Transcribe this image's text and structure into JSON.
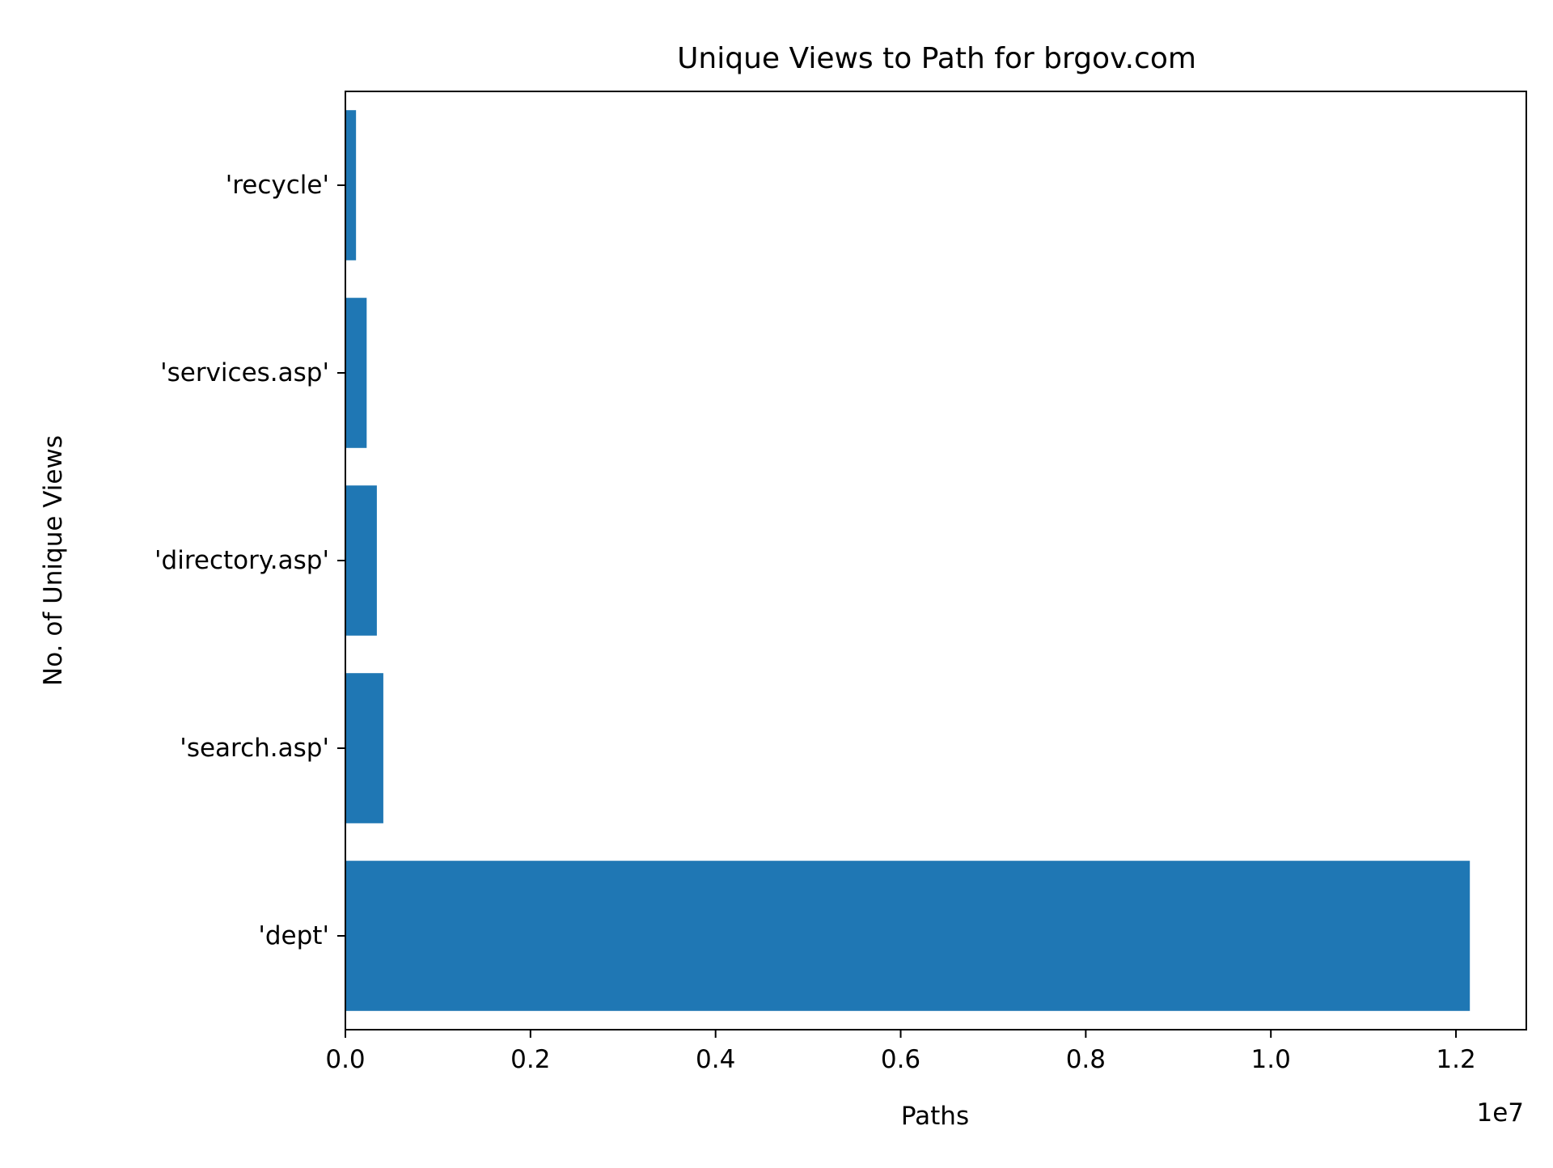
{
  "chart_data": {
    "type": "bar",
    "orientation": "horizontal",
    "title": "Unique Views to Path for brgov.com",
    "xlabel": "Paths",
    "ylabel": "No. of Unique Views",
    "x_offset_label": "1e7",
    "x_scale_multiplier": 10000000,
    "categories": [
      "'dept'",
      "'search.asp'",
      "'directory.asp'",
      "'services.asp'",
      "'recycle'"
    ],
    "values": [
      12150000,
      410000,
      340000,
      230000,
      115000
    ],
    "xlim": [
      0,
      12760000
    ],
    "x_ticks": [
      0,
      2000000,
      4000000,
      6000000,
      8000000,
      10000000,
      12000000
    ],
    "x_tick_labels": [
      "0.0",
      "0.2",
      "0.4",
      "0.6",
      "0.8",
      "1.0",
      "1.2"
    ],
    "grid": false,
    "legend": "none",
    "colors": {
      "bar": "#1f77b4",
      "axis": "#000000",
      "background": "#ffffff"
    }
  }
}
